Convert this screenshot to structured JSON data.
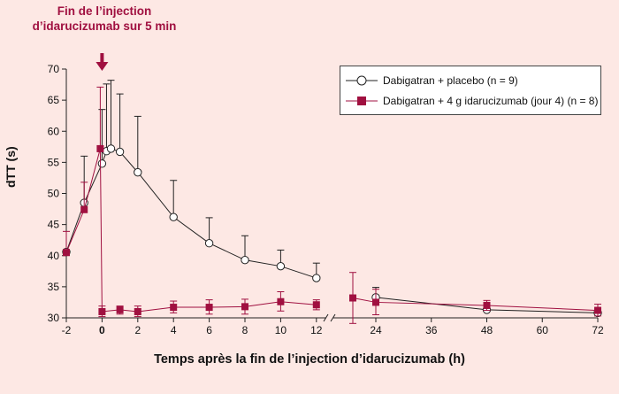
{
  "annotation": "Fin de l’injection d’idarucizumab sur 5 min",
  "colors": {
    "background": "#fde8e4",
    "placebo": "#222222",
    "idarucizumab": "#a01040"
  },
  "chart_data": {
    "type": "line",
    "xlabel": "Temps après la fin de l’injection d’idarucizumab (h)",
    "ylabel": "dTT (s)",
    "ylim": [
      30,
      70
    ],
    "yticks": [
      30,
      35,
      40,
      45,
      50,
      55,
      60,
      65,
      70
    ],
    "xticks_left": [
      "-2",
      "0",
      "2",
      "4",
      "6",
      "8",
      "10",
      "12"
    ],
    "xticks_right": [
      "24",
      "36",
      "48",
      "60",
      "72"
    ],
    "x_axis_break": "between 12 and 24 h",
    "grid": false,
    "legend_position": "top-right",
    "series": [
      {
        "name": "Dabigatran + placebo (n = 9)",
        "marker": "open-circle",
        "x": [
          -2,
          -1,
          0,
          0.25,
          0.5,
          1,
          2,
          4,
          6,
          8,
          10,
          12,
          24,
          48,
          72
        ],
        "y": [
          40.6,
          48.5,
          54.8,
          56.8,
          57.2,
          56.7,
          53.4,
          46.2,
          42.0,
          39.3,
          38.3,
          36.4,
          33.3,
          31.3,
          30.8
        ],
        "err_up": [
          40.6,
          56,
          63.5,
          67.6,
          68.2,
          66.0,
          62.4,
          52.1,
          46.1,
          43.2,
          40.9,
          38.8,
          34.9,
          32.1,
          31.6
        ],
        "err_down": [
          null,
          null,
          null,
          null,
          null,
          null,
          null,
          null,
          null,
          null,
          null,
          null,
          null,
          null,
          null
        ]
      },
      {
        "name": "Dabigatran + 4 g idarucizumab (jour 4) (n = 8)",
        "marker": "filled-square",
        "x": [
          -2,
          -1,
          -0.1,
          0,
          1,
          2,
          4,
          6,
          8,
          10,
          12,
          18,
          24,
          48,
          72
        ],
        "y": [
          40.5,
          47.4,
          57.2,
          31.0,
          31.3,
          31.0,
          31.7,
          31.7,
          31.8,
          32.6,
          32.1,
          33.2,
          32.5,
          32.0,
          31.2
        ],
        "err_up": [
          43.9,
          51.8,
          67.1,
          31.9,
          31.9,
          31.9,
          32.7,
          32.9,
          33.0,
          34.2,
          32.9,
          37.3,
          34.6,
          32.8,
          32.2
        ],
        "err_down": [
          null,
          null,
          null,
          30.2,
          30.6,
          30.2,
          30.8,
          30.6,
          30.6,
          31.1,
          31.3,
          29.1,
          30.5,
          31.2,
          30.3
        ]
      }
    ]
  }
}
